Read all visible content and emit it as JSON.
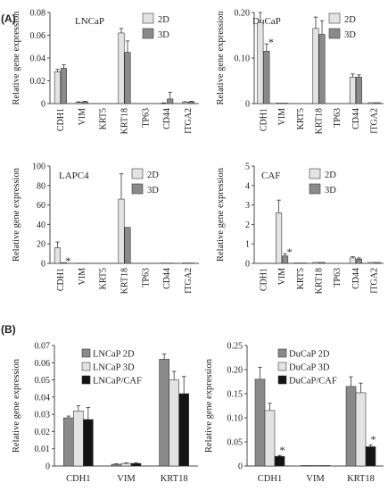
{
  "figure": {
    "panel_labels": [
      "(A)",
      "(B)"
    ],
    "colors": {
      "2D": "#e3e3e3",
      "3D": "#8a8a8a",
      "CAF": "#141414",
      "axis": "#4a4a4a",
      "star": "#3a3a3a"
    }
  },
  "chart_data": [
    {
      "type": "bar",
      "title": "LNCaP",
      "ylabel": "Relative gene expression",
      "categories": [
        "CDH1",
        "VIM",
        "KRT5",
        "KRT18",
        "TP63",
        "CD44",
        "ITGA2"
      ],
      "ylim": [
        0,
        0.08
      ],
      "yticks": [
        0,
        0.02,
        0.04,
        0.06,
        0.08
      ],
      "ytick_labels": [
        "0",
        "0.02",
        "0.04",
        "0.06",
        "0.08"
      ],
      "legend": "top-right",
      "series": [
        {
          "name": "2D",
          "color_key": "2D",
          "values": [
            0.028,
            0.001,
            0,
            0.062,
            0,
            0.0003,
            0.0012
          ],
          "errors": [
            0.002,
            0.0005,
            0,
            0.004,
            0,
            0.0003,
            0.0004
          ],
          "stars": []
        },
        {
          "name": "3D",
          "color_key": "3D",
          "values": [
            0.031,
            0.0015,
            0,
            0.045,
            0,
            0.004,
            0.0015
          ],
          "errors": [
            0.003,
            0.0005,
            0,
            0.01,
            0,
            0.006,
            0.0005
          ],
          "stars": []
        }
      ]
    },
    {
      "type": "bar",
      "title": "DuCaP",
      "ylabel": "Relative gene expression",
      "categories": [
        "CDH1",
        "VIM",
        "KRT5",
        "KRT18",
        "TP63",
        "CD44",
        "ITGA2"
      ],
      "ylim": [
        0,
        0.2
      ],
      "yticks": [
        0,
        0.1,
        0.2
      ],
      "ytick_labels": [
        "0",
        "0.10",
        "0.20"
      ],
      "legend": "top-right",
      "series": [
        {
          "name": "2D",
          "color_key": "2D",
          "values": [
            0.178,
            0.001,
            0,
            0.165,
            0,
            0.058,
            0.002
          ],
          "errors": [
            0.025,
            0,
            0,
            0.025,
            0,
            0.007,
            0
          ],
          "stars": []
        },
        {
          "name": "3D",
          "color_key": "3D",
          "values": [
            0.115,
            0.001,
            0,
            0.152,
            0,
            0.058,
            0.002
          ],
          "errors": [
            0.016,
            0,
            0,
            0.03,
            0,
            0.005,
            0
          ],
          "stars": [
            0
          ]
        }
      ]
    },
    {
      "type": "bar",
      "title": "LAPC4",
      "ylabel": "Relative gene expression",
      "categories": [
        "CDH1",
        "VIM",
        "KRT5",
        "KRT18",
        "TP63",
        "CD44",
        "ITGA2"
      ],
      "ylim": [
        0,
        100
      ],
      "yticks": [
        0,
        20,
        40,
        60,
        80,
        100
      ],
      "ytick_labels": [
        "0",
        "20",
        "40",
        "60",
        "80",
        "100"
      ],
      "legend": "top-right",
      "series": [
        {
          "name": "2D",
          "color_key": "2D",
          "values": [
            16,
            0.2,
            0,
            66,
            0,
            0.3,
            0.4
          ],
          "errors": [
            6,
            0,
            0,
            26,
            0,
            0,
            0
          ],
          "stars": []
        },
        {
          "name": "3D",
          "color_key": "3D",
          "values": [
            0.8,
            0.2,
            0,
            37,
            0,
            0.3,
            0.4
          ],
          "errors": [
            0,
            0,
            0,
            0,
            0,
            0,
            0
          ],
          "stars": [
            0
          ]
        }
      ]
    },
    {
      "type": "bar",
      "title": "CAF",
      "ylabel": "Relative gene expression",
      "categories": [
        "CDH1",
        "VIM",
        "KRT5",
        "KRT18",
        "TP63",
        "CD44",
        "ITGA2"
      ],
      "ylim": [
        0,
        5
      ],
      "yticks": [
        0,
        1,
        2,
        3,
        4,
        5
      ],
      "ytick_labels": [
        "0",
        "1",
        "2",
        "3",
        "4",
        "5"
      ],
      "legend": "top-right",
      "series": [
        {
          "name": "2D",
          "color_key": "2D",
          "values": [
            0,
            2.6,
            0.02,
            0.05,
            0,
            0.28,
            0.05
          ],
          "errors": [
            0,
            0.65,
            0,
            0,
            0,
            0.06,
            0
          ],
          "stars": []
        },
        {
          "name": "3D",
          "color_key": "3D",
          "values": [
            0,
            0.38,
            0.02,
            0.05,
            0,
            0.22,
            0.05
          ],
          "errors": [
            0,
            0.12,
            0,
            0,
            0,
            0.06,
            0
          ],
          "stars": [
            1
          ]
        }
      ]
    },
    {
      "type": "bar",
      "title": "",
      "ylabel": "Relative gene expression",
      "categories": [
        "CDH1",
        "VIM",
        "KRT18"
      ],
      "ylim": [
        0,
        0.07
      ],
      "yticks": [
        0,
        0.01,
        0.02,
        0.03,
        0.04,
        0.05,
        0.06,
        0.07
      ],
      "ytick_labels": [
        "0",
        "0.01",
        "0.02",
        "0.03",
        "0.04",
        "0.05",
        "0.06",
        "0.07"
      ],
      "legend": "top-left",
      "series": [
        {
          "name": "LNCaP 2D",
          "color_key": "3D",
          "values": [
            0.028,
            0.001,
            0.062
          ],
          "errors": [
            0.001,
            0.0003,
            0.003
          ],
          "stars": []
        },
        {
          "name": "LNCaP 3D",
          "color_key": "2D",
          "values": [
            0.032,
            0.0015,
            0.05
          ],
          "errors": [
            0.003,
            0.0003,
            0.005
          ],
          "stars": []
        },
        {
          "name": "LNCaP/CAF",
          "color_key": "CAF",
          "values": [
            0.027,
            0.0015,
            0.042
          ],
          "errors": [
            0.007,
            0.0003,
            0.01
          ],
          "stars": []
        }
      ]
    },
    {
      "type": "bar",
      "title": "",
      "ylabel": "Relative gene expression",
      "categories": [
        "CDH1",
        "VIM",
        "KRT18"
      ],
      "ylim": [
        0,
        0.25
      ],
      "yticks": [
        0,
        0.05,
        0.1,
        0.15,
        0.2,
        0.25
      ],
      "ytick_labels": [
        "0",
        "0.05",
        "0.10",
        "0.15",
        "0.20",
        "0.25"
      ],
      "legend": "top-left",
      "series": [
        {
          "name": "DuCaP 2D",
          "color_key": "3D",
          "values": [
            0.18,
            0.001,
            0.165
          ],
          "errors": [
            0.025,
            0,
            0.02
          ],
          "stars": []
        },
        {
          "name": "DuCaP 3D",
          "color_key": "2D",
          "values": [
            0.115,
            0.001,
            0.152
          ],
          "errors": [
            0.015,
            0,
            0.02
          ],
          "stars": []
        },
        {
          "name": "DuCaP/CAF",
          "color_key": "CAF",
          "values": [
            0.02,
            0.001,
            0.04
          ],
          "errors": [
            0.002,
            0,
            0.004
          ],
          "stars": [
            0,
            2
          ]
        }
      ]
    }
  ]
}
